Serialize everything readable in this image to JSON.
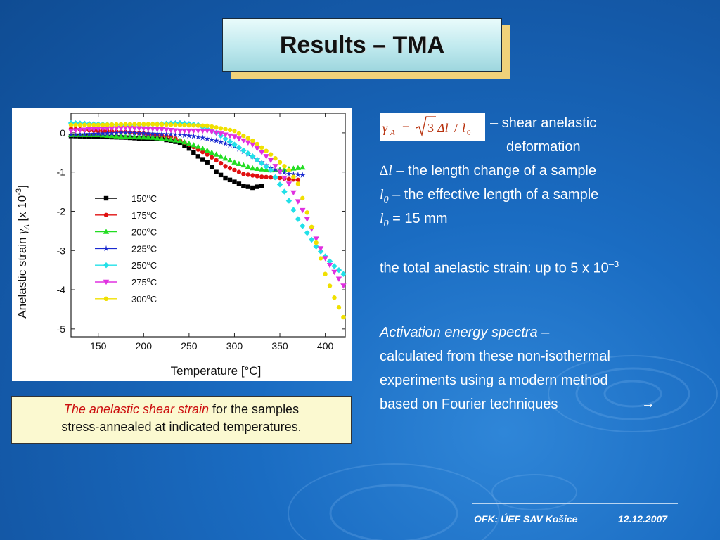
{
  "slide": {
    "title": "Results – TMA",
    "footer_left": "OFK: ÚEF SAV Košice",
    "footer_right": "12.12.2007"
  },
  "caption": {
    "em": "The anelastic shear strain",
    "rest1": " for the samples",
    "line2": "stress-annealed at indicated temperatures."
  },
  "formula": {
    "gamma": "γ",
    "sub": "A",
    "eq": "=",
    "three": "3",
    "dl": "Δl",
    "slash": "/",
    "l0": "l",
    "zero": "0"
  },
  "text": {
    "line1": "– shear anelastic",
    "line2": "deformation",
    "dl_sym": "∆l",
    "dl_desc": " – the length change of a sample",
    "l0_sym": "l",
    "l0_sub": "0",
    "l0_desc": " – the effective length of a sample",
    "l0b_sym": "l",
    "l0b_sub": "0",
    "l0b_desc": " = 15 mm",
    "total": "the total anelastic strain: up to 5 x 10",
    "total_exp": "–3",
    "act_em": "Activation energy spectra",
    "act_rest": " –",
    "act_l2": "calculated from these non-isothermal",
    "act_l3": "experiments using a modern method",
    "act_l4": "based on Fourier techniques",
    "arrow": "→"
  },
  "chart_data": {
    "type": "scatter",
    "xlabel": "Temperature [°C]",
    "ylabel_main": "Anelastic strain ",
    "ylabel_sym": "γ",
    "ylabel_sub": "A",
    "ylabel_unit": " [x 10",
    "ylabel_exp": "-3",
    "ylabel_end": "]",
    "xlim": [
      120,
      422
    ],
    "ylim": [
      -5.2,
      0.5
    ],
    "xticks": [
      150,
      200,
      250,
      300,
      350,
      400
    ],
    "yticks": [
      0,
      -1,
      -2,
      -3,
      -4,
      -5
    ],
    "legend_position": "middle-left",
    "series": [
      {
        "name": "150°C",
        "name_num": "150",
        "name_deg": "o",
        "name_unit": "C",
        "color": "#000000",
        "marker": "square",
        "x": [
          120,
          150,
          180,
          200,
          220,
          240,
          250,
          260,
          270,
          280,
          290,
          300,
          310,
          320,
          330
        ],
        "y": [
          -0.08,
          -0.1,
          -0.12,
          -0.15,
          -0.16,
          -0.25,
          -0.4,
          -0.6,
          -0.75,
          -1.0,
          -1.15,
          -1.25,
          -1.35,
          -1.4,
          -1.35
        ]
      },
      {
        "name": "175°C",
        "name_num": "175",
        "name_deg": "o",
        "name_unit": "C",
        "color": "#e01010",
        "marker": "circle",
        "x": [
          120,
          150,
          180,
          200,
          230,
          250,
          270,
          290,
          310,
          330,
          350,
          360,
          370
        ],
        "y": [
          0.1,
          0.05,
          0.02,
          -0.02,
          -0.1,
          -0.3,
          -0.55,
          -0.85,
          -1.05,
          -1.12,
          -1.15,
          -1.18,
          -1.2
        ]
      },
      {
        "name": "200°C",
        "name_num": "200",
        "name_deg": "o",
        "name_unit": "C",
        "color": "#22dd22",
        "marker": "triangle-up",
        "x": [
          120,
          150,
          180,
          210,
          240,
          260,
          280,
          300,
          320,
          340,
          360,
          375
        ],
        "y": [
          -0.05,
          -0.05,
          -0.1,
          -0.12,
          -0.2,
          -0.35,
          -0.55,
          -0.75,
          -0.9,
          -0.95,
          -0.92,
          -0.88
        ]
      },
      {
        "name": "225°C",
        "name_num": "225",
        "name_deg": "o",
        "name_unit": "C",
        "color": "#1a2ad0",
        "marker": "star",
        "x": [
          120,
          150,
          180,
          210,
          240,
          260,
          280,
          300,
          320,
          340,
          360,
          375
        ],
        "y": [
          -0.05,
          -0.02,
          0.0,
          -0.02,
          -0.05,
          -0.1,
          -0.2,
          -0.35,
          -0.6,
          -0.9,
          -1.05,
          -1.08
        ]
      },
      {
        "name": "250°C",
        "name_num": "250",
        "name_deg": "o",
        "name_unit": "C",
        "color": "#22e0e8",
        "marker": "diamond",
        "x": [
          120,
          150,
          180,
          210,
          240,
          260,
          280,
          300,
          320,
          340,
          355,
          370,
          390,
          410,
          420
        ],
        "y": [
          0.25,
          0.22,
          0.2,
          0.22,
          0.25,
          0.2,
          0.0,
          -0.3,
          -0.6,
          -0.95,
          -1.5,
          -2.2,
          -2.9,
          -3.4,
          -3.6
        ]
      },
      {
        "name": "275°C",
        "name_num": "275",
        "name_deg": "o",
        "name_unit": "C",
        "color": "#e030e0",
        "marker": "triangle-down",
        "x": [
          120,
          150,
          180,
          210,
          240,
          270,
          300,
          320,
          340,
          360,
          380,
          400,
          420
        ],
        "y": [
          0.05,
          0.1,
          0.12,
          0.1,
          0.05,
          0.05,
          -0.1,
          -0.3,
          -0.7,
          -1.3,
          -2.2,
          -3.2,
          -3.9
        ]
      },
      {
        "name": "300°C",
        "name_num": "300",
        "name_deg": "o",
        "name_unit": "C",
        "color": "#f0e000",
        "marker": "circle",
        "x": [
          120,
          150,
          180,
          210,
          240,
          270,
          300,
          320,
          340,
          360,
          370,
          385,
          400,
          410,
          420
        ],
        "y": [
          0.2,
          0.2,
          0.22,
          0.22,
          0.2,
          0.18,
          0.05,
          -0.2,
          -0.55,
          -0.95,
          -1.3,
          -2.4,
          -3.6,
          -4.2,
          -4.7
        ]
      }
    ]
  }
}
